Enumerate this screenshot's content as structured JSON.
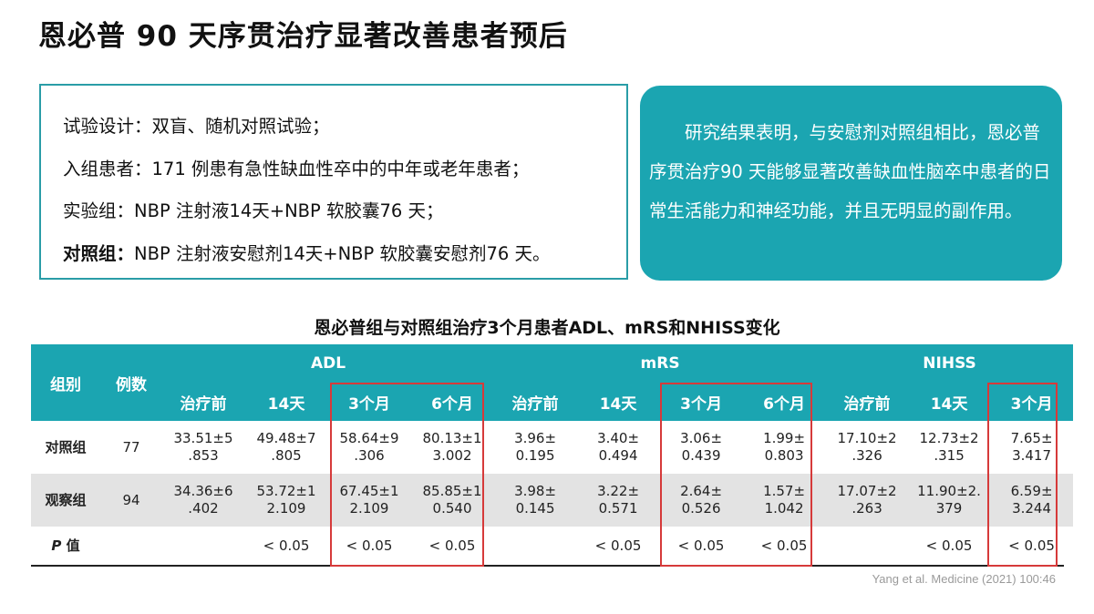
{
  "title": "恩必普 90 天序贯治疗显著改善患者预后",
  "design": {
    "line1": "试验设计：双盲、随机对照试验；",
    "line2": "入组患者：171 例患有急性缺血性卒中的中年或老年患者；",
    "line3": "实验组：NBP 注射液14天+NBP 软胶囊76 天；",
    "line4_label": "对照组：",
    "line4_text": "NBP  注射液安慰剂14天+NBP  软胶囊安慰剂76  天。"
  },
  "conclusion": "研究结果表明，与安慰剂对照组相比，恩必普序贯治疗90  天能够显著改善缺血性脑卒中患者的日常生活能力和神经功能，并且无明显的副作用。",
  "table_title": "恩必普组与对照组治疗3个月患者ADL、mRS和NHISS变化",
  "table": {
    "col_group": "组别",
    "col_n": "例数",
    "groups": {
      "adl": "ADL",
      "mrs": "mRS",
      "nihss": "NIHSS"
    },
    "sub": {
      "adl": [
        "治疗前",
        "14天",
        "3个月",
        "6个月"
      ],
      "mrs": [
        "治疗前",
        "14天",
        "3个月",
        "6个月"
      ],
      "nihss": [
        "治疗前",
        "14天",
        "3个月"
      ]
    },
    "rows": {
      "control": {
        "label": "对照组",
        "n": "77",
        "cells": [
          [
            "33.51±5",
            ".853"
          ],
          [
            "49.48±7",
            ".805"
          ],
          [
            "58.64±9",
            ".306"
          ],
          [
            "80.13±1",
            "3.002"
          ],
          [
            "3.96±",
            "0.195"
          ],
          [
            "3.40±",
            "0.494"
          ],
          [
            "3.06±",
            "0.439"
          ],
          [
            "1.99±",
            "0.803"
          ],
          [
            "17.10±2",
            ".326"
          ],
          [
            "12.73±2",
            ".315"
          ],
          [
            "7.65±",
            "3.417"
          ]
        ]
      },
      "observation": {
        "label": "观察组",
        "n": "94",
        "cells": [
          [
            "34.36±6",
            ".402"
          ],
          [
            "53.72±1",
            "2.109"
          ],
          [
            "67.45±1",
            "2.109"
          ],
          [
            "85.85±1",
            "0.540"
          ],
          [
            "3.98±",
            "0.145"
          ],
          [
            "3.22±",
            "0.571"
          ],
          [
            "2.64±",
            "0.526"
          ],
          [
            "1.57±",
            "1.042"
          ],
          [
            "17.07±2",
            ".263"
          ],
          [
            "11.90±2.",
            "379"
          ],
          [
            "6.59±",
            "3.244"
          ]
        ]
      },
      "p": {
        "label_italic": "P",
        "label_rest": " 值",
        "cells": [
          "",
          "< 0.05",
          "< 0.05",
          "< 0.05",
          "",
          "< 0.05",
          "< 0.05",
          "< 0.05",
          "",
          "< 0.05",
          "< 0.05"
        ]
      }
    }
  },
  "citation": "Yang et al. Medicine (2021) 100:46",
  "colors": {
    "teal": "#1ba5b1",
    "highlight_red": "#d63a3a",
    "row_gray": "#e3e3e3"
  }
}
